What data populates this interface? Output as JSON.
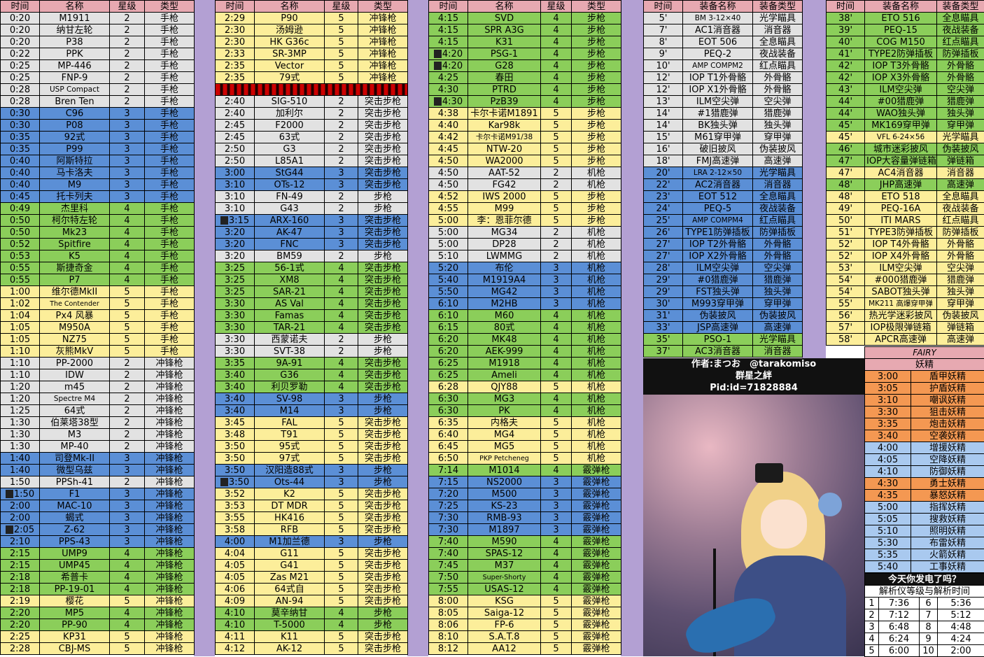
{
  "headers": {
    "time": "时间",
    "name": "名称",
    "star": "星级",
    "type": "类型",
    "equip_name": "装备名称",
    "equip_type": "装备类型"
  },
  "col1": [
    [
      "0:20",
      "M1911",
      "2",
      "手枪",
      "w"
    ],
    [
      "0:20",
      "纳甘左轮",
      "2",
      "手枪",
      "w"
    ],
    [
      "0:20",
      "P38",
      "2",
      "手枪",
      "w"
    ],
    [
      "0:22",
      "PPK",
      "2",
      "手枪",
      "w"
    ],
    [
      "0:25",
      "MP-446",
      "2",
      "手枪",
      "w"
    ],
    [
      "0:25",
      "FNP-9",
      "2",
      "手枪",
      "w"
    ],
    [
      "0:28",
      "USP Compact",
      "2",
      "手枪",
      "w"
    ],
    [
      "0:28",
      "Bren Ten",
      "2",
      "手枪",
      "w"
    ],
    [
      "0:30",
      "C96",
      "3",
      "手枪",
      "b"
    ],
    [
      "0:30",
      "P08",
      "3",
      "手枪",
      "b"
    ],
    [
      "0:35",
      "92式",
      "3",
      "手枪",
      "b"
    ],
    [
      "0:35",
      "P99",
      "3",
      "手枪",
      "b"
    ],
    [
      "0:40",
      "阿斯特拉",
      "3",
      "手枪",
      "b"
    ],
    [
      "0:40",
      "马卡洛夫",
      "3",
      "手枪",
      "b"
    ],
    [
      "0:40",
      "M9",
      "3",
      "手枪",
      "b"
    ],
    [
      "0:45",
      "托卡列夫",
      "3",
      "手枪",
      "b"
    ],
    [
      "0:49",
      "杰里科",
      "4",
      "手枪",
      "g"
    ],
    [
      "0:50",
      "柯尔特左轮",
      "4",
      "手枪",
      "g"
    ],
    [
      "0:50",
      "Mk23",
      "4",
      "手枪",
      "g"
    ],
    [
      "0:52",
      "Spitfire",
      "4",
      "手枪",
      "g"
    ],
    [
      "0:53",
      "K5",
      "4",
      "手枪",
      "g"
    ],
    [
      "0:55",
      "斯捷奇金",
      "4",
      "手枪",
      "g"
    ],
    [
      "0:55",
      "P7",
      "4",
      "手枪",
      "g"
    ],
    [
      "1:00",
      "维尔德MkII",
      "5",
      "手枪",
      "y"
    ],
    [
      "1:02",
      "The Contender",
      "5",
      "手枪",
      "y"
    ],
    [
      "1:04",
      "Px4 风暴",
      "5",
      "手枪",
      "y"
    ],
    [
      "1:05",
      "M950A",
      "5",
      "手枪",
      "y"
    ],
    [
      "1:05",
      "NZ75",
      "5",
      "手枪",
      "y"
    ],
    [
      "1:10",
      "灰熊MkV",
      "5",
      "手枪",
      "y"
    ],
    [
      "1:10",
      "PP-2000",
      "2",
      "冲锋枪",
      "w"
    ],
    [
      "1:10",
      "IDW",
      "2",
      "冲锋枪",
      "w"
    ],
    [
      "1:20",
      "m45",
      "2",
      "冲锋枪",
      "w"
    ],
    [
      "1:20",
      "Spectre M4",
      "2",
      "冲锋枪",
      "w"
    ],
    [
      "1:25",
      "64式",
      "2",
      "冲锋枪",
      "w"
    ],
    [
      "1:30",
      "伯莱塔38型",
      "2",
      "冲锋枪",
      "w"
    ],
    [
      "1:30",
      "M3",
      "2",
      "冲锋枪",
      "w"
    ],
    [
      "1:30",
      "MP-40",
      "2",
      "冲锋枪",
      "w"
    ],
    [
      "1:40",
      "司登Mk-II",
      "3",
      "冲锋枪",
      "b"
    ],
    [
      "1:40",
      "微型乌兹",
      "3",
      "冲锋枪",
      "b"
    ],
    [
      "1:50",
      "PPSh-41",
      "2",
      "冲锋枪",
      "w"
    ],
    [
      "1:50",
      "F1",
      "3",
      "冲锋枪",
      "b"
    ],
    [
      "2:00",
      "MAC-10",
      "3",
      "冲锋枪",
      "b"
    ],
    [
      "2:00",
      "蝎式",
      "3",
      "冲锋枪",
      "b"
    ],
    [
      "2:05",
      "Z-62",
      "3",
      "冲锋枪",
      "b"
    ],
    [
      "2:10",
      "PPS-43",
      "3",
      "冲锋枪",
      "b"
    ],
    [
      "2:15",
      "UMP9",
      "4",
      "冲锋枪",
      "g"
    ],
    [
      "2:15",
      "UMP45",
      "4",
      "冲锋枪",
      "g"
    ],
    [
      "2:18",
      "希普卡",
      "4",
      "冲锋枪",
      "g"
    ],
    [
      "2:18",
      "PP-19-01",
      "4",
      "冲锋枪",
      "g"
    ],
    [
      "2:19",
      "樱花",
      "5",
      "冲锋枪",
      "y"
    ],
    [
      "2:20",
      "MP5",
      "4",
      "冲锋枪",
      "g"
    ],
    [
      "2:20",
      "PP-90",
      "4",
      "冲锋枪",
      "g"
    ],
    [
      "2:25",
      "KP31",
      "5",
      "冲锋枪",
      "y"
    ],
    [
      "2:28",
      "CBJ-MS",
      "5",
      "冲锋枪",
      "y"
    ]
  ],
  "col2": [
    [
      "2:29",
      "P90",
      "5",
      "冲锋枪",
      "y"
    ],
    [
      "2:30",
      "汤姆逊",
      "5",
      "冲锋枪",
      "y"
    ],
    [
      "2:30",
      "HK G36c",
      "5",
      "冲锋枪",
      "y"
    ],
    [
      "2:33",
      "SR-3MP",
      "5",
      "冲锋枪",
      "y"
    ],
    [
      "2:35",
      "Vector",
      "5",
      "冲锋枪",
      "y"
    ],
    [
      "2:35",
      "79式",
      "5",
      "冲锋枪",
      "y"
    ],
    [
      "2:40",
      "SIG-510",
      "2",
      "突击步枪",
      "w"
    ],
    [
      "2:40",
      "加利尔",
      "2",
      "突击步枪",
      "w"
    ],
    [
      "2:45",
      "F2000",
      "2",
      "突击步枪",
      "w"
    ],
    [
      "2:45",
      "63式",
      "2",
      "突击步枪",
      "w"
    ],
    [
      "2:50",
      "G3",
      "2",
      "突击步枪",
      "w"
    ],
    [
      "2:50",
      "L85A1",
      "2",
      "突击步枪",
      "w"
    ],
    [
      "3:00",
      "StG44",
      "3",
      "突击步枪",
      "b"
    ],
    [
      "3:10",
      "OTs-12",
      "3",
      "突击步枪",
      "b"
    ],
    [
      "3:10",
      "FN-49",
      "2",
      "步枪",
      "w"
    ],
    [
      "3:10",
      "G43",
      "2",
      "步枪",
      "w"
    ],
    [
      "3:15",
      "ARX-160",
      "3",
      "突击步枪",
      "b"
    ],
    [
      "3:20",
      "AK-47",
      "3",
      "突击步枪",
      "b"
    ],
    [
      "3:20",
      "FNC",
      "3",
      "突击步枪",
      "b"
    ],
    [
      "3:20",
      "BM59",
      "2",
      "步枪",
      "w"
    ],
    [
      "3:25",
      "56-1式",
      "4",
      "突击步枪",
      "g"
    ],
    [
      "3:25",
      "XM8",
      "4",
      "突击步枪",
      "g"
    ],
    [
      "3:25",
      "SAR-21",
      "4",
      "突击步枪",
      "g"
    ],
    [
      "3:30",
      "AS Val",
      "4",
      "突击步枪",
      "g"
    ],
    [
      "3:30",
      "Famas",
      "4",
      "突击步枪",
      "g"
    ],
    [
      "3:30",
      "TAR-21",
      "4",
      "突击步枪",
      "g"
    ],
    [
      "3:30",
      "西蒙诺夫",
      "2",
      "步枪",
      "w"
    ],
    [
      "3:30",
      "SVT-38",
      "2",
      "步枪",
      "w"
    ],
    [
      "3:35",
      "9A-91",
      "4",
      "突击步枪",
      "g"
    ],
    [
      "3:40",
      "G36",
      "4",
      "突击步枪",
      "g"
    ],
    [
      "3:40",
      "利贝罗勒",
      "4",
      "突击步枪",
      "g"
    ],
    [
      "3:40",
      "SV-98",
      "3",
      "步枪",
      "b"
    ],
    [
      "3:40",
      "M14",
      "3",
      "步枪",
      "b"
    ],
    [
      "3:45",
      "FAL",
      "5",
      "突击步枪",
      "y"
    ],
    [
      "3:48",
      "T91",
      "5",
      "突击步枪",
      "y"
    ],
    [
      "3:50",
      "95式",
      "5",
      "突击步枪",
      "y"
    ],
    [
      "3:50",
      "97式",
      "5",
      "突击步枪",
      "y"
    ],
    [
      "3:50",
      "汉阳造88式",
      "3",
      "步枪",
      "b"
    ],
    [
      "3:50",
      "Ots-44",
      "3",
      "步枪",
      "b"
    ],
    [
      "3:52",
      "K2",
      "5",
      "突击步枪",
      "y"
    ],
    [
      "3:53",
      "DT MDR",
      "5",
      "突击步枪",
      "y"
    ],
    [
      "3:55",
      "HK416",
      "5",
      "突击步枪",
      "y"
    ],
    [
      "3:58",
      "RFB",
      "5",
      "突击步枪",
      "y"
    ],
    [
      "4:00",
      "M1加兰德",
      "3",
      "步枪",
      "b"
    ],
    [
      "4:04",
      "G11",
      "5",
      "突击步枪",
      "y"
    ],
    [
      "4:05",
      "G41",
      "5",
      "突击步枪",
      "y"
    ],
    [
      "4:05",
      "Zas M21",
      "5",
      "突击步枪",
      "y"
    ],
    [
      "4:06",
      "64式自",
      "5",
      "突击步枪",
      "y"
    ],
    [
      "4:09",
      "AN-94",
      "5",
      "突击步枪",
      "y"
    ],
    [
      "4:10",
      "莫辛纳甘",
      "4",
      "步枪",
      "g"
    ],
    [
      "4:10",
      "T-5000",
      "4",
      "步枪",
      "g"
    ],
    [
      "4:11",
      "K11",
      "5",
      "突击步枪",
      "y"
    ],
    [
      "4:12",
      "AK-12",
      "5",
      "突击步枪",
      "y"
    ]
  ],
  "col3": [
    [
      "4:15",
      "SVD",
      "4",
      "步枪",
      "g"
    ],
    [
      "4:15",
      "SPR A3G",
      "4",
      "步枪",
      "g"
    ],
    [
      "4:15",
      "K31",
      "4",
      "步枪",
      "g"
    ],
    [
      "4:20",
      "PSG-1",
      "4",
      "步枪",
      "g"
    ],
    [
      "4:20",
      "G28",
      "4",
      "步枪",
      "g"
    ],
    [
      "4:25",
      "春田",
      "4",
      "步枪",
      "g"
    ],
    [
      "4:30",
      "PTRD",
      "4",
      "步枪",
      "g"
    ],
    [
      "4:30",
      "PzB39",
      "4",
      "步枪",
      "g"
    ],
    [
      "4:38",
      "卡尔卡诺M1891",
      "5",
      "步枪",
      "y"
    ],
    [
      "4:40",
      "Kar98k",
      "5",
      "步枪",
      "y"
    ],
    [
      "4:42",
      "卡尔卡诺M91/38",
      "5",
      "步枪",
      "y"
    ],
    [
      "4:45",
      "NTW-20",
      "5",
      "步枪",
      "y"
    ],
    [
      "4:50",
      "WA2000",
      "5",
      "步枪",
      "y"
    ],
    [
      "4:50",
      "AAT-52",
      "2",
      "机枪",
      "w"
    ],
    [
      "4:50",
      "FG42",
      "2",
      "机枪",
      "w"
    ],
    [
      "4:52",
      "IWS 2000",
      "5",
      "步枪",
      "y"
    ],
    [
      "4:55",
      "M99",
      "5",
      "步枪",
      "y"
    ],
    [
      "5:00",
      "李：恩菲尔德",
      "5",
      "步枪",
      "y"
    ],
    [
      "5:00",
      "MG34",
      "2",
      "机枪",
      "w"
    ],
    [
      "5:00",
      "DP28",
      "2",
      "机枪",
      "w"
    ],
    [
      "5:10",
      "LWMMG",
      "2",
      "机枪",
      "w"
    ],
    [
      "5:20",
      "布伦",
      "3",
      "机枪",
      "b"
    ],
    [
      "5:40",
      "M1919A4",
      "3",
      "机枪",
      "b"
    ],
    [
      "5:50",
      "MG42",
      "3",
      "机枪",
      "b"
    ],
    [
      "6:10",
      "M2HB",
      "3",
      "机枪",
      "b"
    ],
    [
      "6:10",
      "M60",
      "4",
      "机枪",
      "g"
    ],
    [
      "6:15",
      "80式",
      "4",
      "机枪",
      "g"
    ],
    [
      "6:20",
      "MK48",
      "4",
      "机枪",
      "g"
    ],
    [
      "6:20",
      "AEK-999",
      "4",
      "机枪",
      "g"
    ],
    [
      "6:25",
      "M1918",
      "4",
      "机枪",
      "g"
    ],
    [
      "6:25",
      "Ameli",
      "4",
      "机枪",
      "g"
    ],
    [
      "6:28",
      "QJY88",
      "5",
      "机枪",
      "y"
    ],
    [
      "6:30",
      "MG3",
      "4",
      "机枪",
      "g"
    ],
    [
      "6:30",
      "PK",
      "4",
      "机枪",
      "g"
    ],
    [
      "6:35",
      "内格夫",
      "5",
      "机枪",
      "y"
    ],
    [
      "6:40",
      "MG4",
      "5",
      "机枪",
      "y"
    ],
    [
      "6:45",
      "MG5",
      "5",
      "机枪",
      "y"
    ],
    [
      "6:50",
      "PKP Petcheneg",
      "5",
      "机枪",
      "y"
    ],
    [
      "7:14",
      "M1014",
      "4",
      "霰弹枪",
      "g"
    ],
    [
      "7:15",
      "NS2000",
      "3",
      "霰弹枪",
      "b"
    ],
    [
      "7:20",
      "M500",
      "3",
      "霰弹枪",
      "b"
    ],
    [
      "7:25",
      "KS-23",
      "3",
      "霰弹枪",
      "b"
    ],
    [
      "7:30",
      "RMB-93",
      "3",
      "霰弹枪",
      "b"
    ],
    [
      "7:30",
      "M1897",
      "3",
      "霰弹枪",
      "b"
    ],
    [
      "7:40",
      "M590",
      "4",
      "霰弹枪",
      "g"
    ],
    [
      "7:40",
      "SPAS-12",
      "4",
      "霰弹枪",
      "g"
    ],
    [
      "7:45",
      "M37",
      "4",
      "霰弹枪",
      "g"
    ],
    [
      "7:50",
      "Super-Shorty",
      "4",
      "霰弹枪",
      "g"
    ],
    [
      "7:55",
      "USAS-12",
      "4",
      "霰弹枪",
      "g"
    ],
    [
      "8:00",
      "KSG",
      "5",
      "霰弹枪",
      "y"
    ],
    [
      "8:05",
      "Saiga-12",
      "5",
      "霰弹枪",
      "y"
    ],
    [
      "8:06",
      "FP-6",
      "5",
      "霰弹枪",
      "y"
    ],
    [
      "8:10",
      "S.A.T.8",
      "5",
      "霰弹枪",
      "y"
    ],
    [
      "8:12",
      "AA12",
      "5",
      "霰弹枪",
      "y"
    ]
  ],
  "col4": [
    [
      "5'",
      "BM 3-12×40",
      "光学瞄具",
      "w"
    ],
    [
      "7'",
      "AC1消音器",
      "消音器",
      "w"
    ],
    [
      "8'",
      "EOT 506",
      "全息瞄具",
      "w"
    ],
    [
      "9'",
      "PEQ-2",
      "夜战装备",
      "w"
    ],
    [
      "10'",
      "AMP COMPM2",
      "红点瞄具",
      "w"
    ],
    [
      "12'",
      "IOP T1外骨骼",
      "外骨骼",
      "w"
    ],
    [
      "12'",
      "IOP X1外骨骼",
      "外骨骼",
      "w"
    ],
    [
      "13'",
      "ILM空尖弹",
      "空尖弹",
      "w"
    ],
    [
      "14'",
      "#1猎鹿弹",
      "猎鹿弹",
      "w"
    ],
    [
      "14'",
      "BK独头弹",
      "独头弹",
      "w"
    ],
    [
      "15'",
      "M61穿甲弹",
      "穿甲弹",
      "w"
    ],
    [
      "16'",
      "破旧披风",
      "伪装披风",
      "w"
    ],
    [
      "18'",
      "FMJ高速弹",
      "高速弹",
      "w"
    ],
    [
      "20'",
      "LRA 2-12×50",
      "光学瞄具",
      "b"
    ],
    [
      "22'",
      "AC2消音器",
      "消音器",
      "b"
    ],
    [
      "23'",
      "EOT 512",
      "全息瞄具",
      "b"
    ],
    [
      "24'",
      "PEQ-5",
      "夜战装备",
      "b"
    ],
    [
      "25'",
      "AMP COMPM4",
      "红点瞄具",
      "b"
    ],
    [
      "26'",
      "TYPE1防弹插板",
      "防弹插板",
      "b"
    ],
    [
      "27'",
      "IOP T2外骨骼",
      "外骨骼",
      "b"
    ],
    [
      "27'",
      "IOP X2外骨骼",
      "外骨骼",
      "b"
    ],
    [
      "28'",
      "ILM空尖弹",
      "空尖弹",
      "b"
    ],
    [
      "29'",
      "#0猎鹿弹",
      "猎鹿弹",
      "b"
    ],
    [
      "29'",
      "FST独头弹",
      "独头弹",
      "b"
    ],
    [
      "30'",
      "M993穿甲弹",
      "穿甲弹",
      "b"
    ],
    [
      "31'",
      "伪装披风",
      "伪装披风",
      "b"
    ],
    [
      "33'",
      "JSP高速弹",
      "高速弹",
      "b"
    ],
    [
      "35'",
      "PSO-1",
      "光学瞄具",
      "g"
    ],
    [
      "37'",
      "AC3消音器",
      "消音器",
      "g"
    ]
  ],
  "col5": [
    [
      "38'",
      "ETO 516",
      "全息瞄具",
      "g"
    ],
    [
      "39'",
      "PEQ-15",
      "夜战装备",
      "g"
    ],
    [
      "40'",
      "COG M150",
      "红点瞄具",
      "g"
    ],
    [
      "41'",
      "TYPE2防弹插板",
      "防弹插板",
      "g"
    ],
    [
      "42'",
      "IOP T3外骨骼",
      "外骨骼",
      "g"
    ],
    [
      "42'",
      "IOP X3外骨骼",
      "外骨骼",
      "g"
    ],
    [
      "43'",
      "ILM空尖弹",
      "空尖弹",
      "g"
    ],
    [
      "44'",
      "#00猎鹿弹",
      "猎鹿弹",
      "g"
    ],
    [
      "44'",
      "WAO独头弹",
      "独头弹",
      "g"
    ],
    [
      "45'",
      "MK169穿甲弹",
      "穿甲弹",
      "g"
    ],
    [
      "45'",
      "VFL 6-24×56",
      "光学瞄具",
      "y"
    ],
    [
      "46'",
      "城市迷彩披风",
      "伪装披风",
      "g"
    ],
    [
      "47'",
      "IOP大容量弹链箱",
      "弹链箱",
      "g"
    ],
    [
      "47'",
      "AC4消音器",
      "消音器",
      "y"
    ],
    [
      "48'",
      "JHP高速弹",
      "高速弹",
      "g"
    ],
    [
      "48'",
      "ETO 518",
      "全息瞄具",
      "y"
    ],
    [
      "49'",
      "PEQ-16A",
      "夜战装备",
      "y"
    ],
    [
      "50'",
      "ITI MARS",
      "红点瞄具",
      "y"
    ],
    [
      "51'",
      "TYPE3防弹插板",
      "防弹插板",
      "y"
    ],
    [
      "52'",
      "IOP T4外骨骼",
      "外骨骼",
      "y"
    ],
    [
      "52'",
      "IOP X4外骨骼",
      "外骨骼",
      "y"
    ],
    [
      "53'",
      "ILM空尖弹",
      "空尖弹",
      "y"
    ],
    [
      "54'",
      "#000猎鹿弹",
      "猎鹿弹",
      "y"
    ],
    [
      "54'",
      "SABOT独头弹",
      "独头弹",
      "y"
    ],
    [
      "55'",
      "MK211 高爆穿甲弹",
      "穿甲弹",
      "y"
    ],
    [
      "56'",
      "热光学迷彩披风",
      "伪装披风",
      "y"
    ],
    [
      "57'",
      "IOP极限弹链箱",
      "弹链箱",
      "y"
    ],
    [
      "58'",
      "APCR高速弹",
      "高速弹",
      "y"
    ]
  ],
  "credit": {
    "author": "作者:まつお　@tarakomiso",
    "group": "群星之絆",
    "pid": "Pid:id=71828884"
  },
  "fairy": {
    "title_en": "FAIRY",
    "title": "妖精",
    "rows": [
      [
        "3:00",
        "盾甲妖精",
        "o"
      ],
      [
        "3:05",
        "护盾妖精",
        "o"
      ],
      [
        "3:10",
        "嘲讽妖精",
        "o"
      ],
      [
        "3:30",
        "狙击妖精",
        "o"
      ],
      [
        "3:35",
        "炮击妖精",
        "o"
      ],
      [
        "3:40",
        "空袭妖精",
        "o"
      ],
      [
        "4:00",
        "增援妖精",
        "lb"
      ],
      [
        "4:05",
        "空降妖精",
        "lb"
      ],
      [
        "4:10",
        "防御妖精",
        "lb"
      ],
      [
        "4:30",
        "勇士妖精",
        "o"
      ],
      [
        "4:35",
        "暴怒妖精",
        "o"
      ],
      [
        "5:00",
        "指挥妖精",
        "lb"
      ],
      [
        "5:05",
        "搜救妖精",
        "lb"
      ],
      [
        "5:10",
        "照明妖精",
        "lb"
      ],
      [
        "5:30",
        "布雷妖精",
        "lb"
      ],
      [
        "5:35",
        "火箭妖精",
        "lb"
      ],
      [
        "5:40",
        "工事妖精",
        "lb"
      ]
    ],
    "question": "今天你发电了吗？",
    "analyzer_title": "解析仪等级与解析时间",
    "analyzer": [
      [
        "1",
        "7:36",
        "6",
        "5:36"
      ],
      [
        "2",
        "7:12",
        "7",
        "5:12"
      ],
      [
        "3",
        "6:48",
        "8",
        "4:48"
      ],
      [
        "4",
        "6:24",
        "9",
        "4:24"
      ],
      [
        "5",
        "6:00",
        "10",
        "2:00"
      ]
    ]
  },
  "palette": {
    "w": "#e2e2e2",
    "b": "#5b8fd6",
    "g": "#8bce5a",
    "y": "#fcee9a",
    "o": "#f49852",
    "lb": "#a9c9ef",
    "header": "#e7a9b1",
    "gap": "#b3a0d3"
  }
}
